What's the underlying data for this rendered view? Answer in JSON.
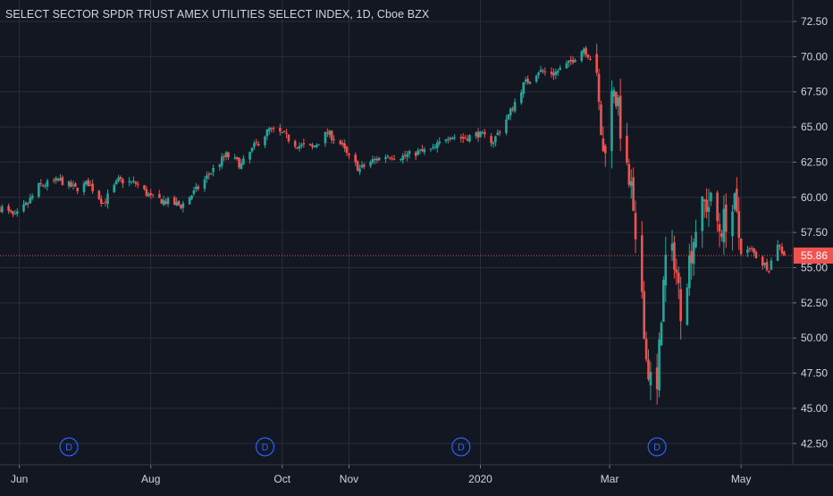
{
  "colors": {
    "background": "#131722",
    "grid": "#2a2e39",
    "text": "#d1d4dc",
    "up": "#26a69a",
    "down": "#ef5350",
    "dividend": "#2962ff",
    "last_price": "#ef5350"
  },
  "chart_data": {
    "type": "candlestick",
    "title": "SELECT SECTOR SPDR TRUST AMEX UTILITIES SELECT INDEX, 1D, Cboe BZX",
    "y_axis": {
      "position": "right",
      "ylim": [
        41.5,
        73.2
      ],
      "ticks": [
        "72.50",
        "70.00",
        "67.50",
        "65.00",
        "62.50",
        "60.00",
        "57.50",
        "55.00",
        "52.50",
        "50.00",
        "47.50",
        "45.00",
        "42.50"
      ]
    },
    "x_axis": {
      "range": [
        "2019-05-23",
        "2020-05-25"
      ],
      "ticks": [
        {
          "date": "2019-06-01",
          "label": "Jun"
        },
        {
          "date": "2019-08-01",
          "label": "Aug"
        },
        {
          "date": "2019-10-01",
          "label": "Oct"
        },
        {
          "date": "2019-11-01",
          "label": "Nov"
        },
        {
          "date": "2020-01-01",
          "label": "2020"
        },
        {
          "date": "2020-03-01",
          "label": "Mar"
        },
        {
          "date": "2020-05-01",
          "label": "May"
        }
      ]
    },
    "grid": true,
    "last_price": 55.86,
    "last_price_label": "55.86",
    "dividend_markers": [
      {
        "date": "2019-06-24",
        "label": "D"
      },
      {
        "date": "2019-09-23",
        "label": "D"
      },
      {
        "date": "2019-12-23",
        "label": "D"
      },
      {
        "date": "2020-03-23",
        "label": "D"
      }
    ],
    "anchors": [
      [
        "2019-05-23",
        59.3
      ],
      [
        "2019-05-30",
        58.6
      ],
      [
        "2019-06-05",
        59.6
      ],
      [
        "2019-06-10",
        60.8
      ],
      [
        "2019-06-20",
        61.2
      ],
      [
        "2019-06-27",
        60.6
      ],
      [
        "2019-07-03",
        61.0
      ],
      [
        "2019-07-10",
        59.6
      ],
      [
        "2019-07-17",
        61.2
      ],
      [
        "2019-07-25",
        61.0
      ],
      [
        "2019-08-01",
        60.0
      ],
      [
        "2019-08-08",
        59.7
      ],
      [
        "2019-08-15",
        59.4
      ],
      [
        "2019-08-22",
        60.5
      ],
      [
        "2019-08-29",
        61.8
      ],
      [
        "2019-09-05",
        63.0
      ],
      [
        "2019-09-12",
        62.3
      ],
      [
        "2019-09-18",
        63.6
      ],
      [
        "2019-09-25",
        64.8
      ],
      [
        "2019-10-01",
        64.5
      ],
      [
        "2019-10-08",
        63.7
      ],
      [
        "2019-10-15",
        63.5
      ],
      [
        "2019-10-22",
        64.6
      ],
      [
        "2019-10-28",
        63.8
      ],
      [
        "2019-11-01",
        62.8
      ],
      [
        "2019-11-06",
        62.0
      ],
      [
        "2019-11-12",
        62.6
      ],
      [
        "2019-11-19",
        63.0
      ],
      [
        "2019-11-26",
        62.9
      ],
      [
        "2019-12-03",
        63.2
      ],
      [
        "2019-12-10",
        63.4
      ],
      [
        "2019-12-17",
        64.4
      ],
      [
        "2019-12-24",
        64.2
      ],
      [
        "2019-12-31",
        64.5
      ],
      [
        "2020-01-07",
        64.0
      ],
      [
        "2020-01-14",
        65.8
      ],
      [
        "2020-01-21",
        68.0
      ],
      [
        "2020-01-28",
        69.0
      ],
      [
        "2020-02-04",
        68.8
      ],
      [
        "2020-02-11",
        69.5
      ],
      [
        "2020-02-18",
        70.6
      ],
      [
        "2020-02-21",
        69.9
      ],
      [
        "2020-02-24",
        68.0
      ],
      [
        "2020-02-27",
        63.0
      ],
      [
        "2020-03-03",
        68.2
      ],
      [
        "2020-03-06",
        65.0
      ],
      [
        "2020-03-09",
        61.5
      ],
      [
        "2020-03-11",
        60.5
      ],
      [
        "2020-03-13",
        56.0
      ],
      [
        "2020-03-16",
        53.5
      ],
      [
        "2020-03-18",
        48.5
      ],
      [
        "2020-03-20",
        47.0
      ],
      [
        "2020-03-23",
        46.0
      ],
      [
        "2020-03-25",
        52.0
      ],
      [
        "2020-03-27",
        55.5
      ],
      [
        "2020-03-31",
        55.8
      ],
      [
        "2020-04-03",
        52.2
      ],
      [
        "2020-04-07",
        55.5
      ],
      [
        "2020-04-10",
        58.0
      ],
      [
        "2020-04-14",
        59.5
      ],
      [
        "2020-04-17",
        59.5
      ],
      [
        "2020-04-21",
        57.8
      ],
      [
        "2020-04-24",
        58.5
      ],
      [
        "2020-04-28",
        59.3
      ],
      [
        "2020-05-01",
        56.2
      ],
      [
        "2020-05-06",
        56.2
      ],
      [
        "2020-05-11",
        55.3
      ],
      [
        "2020-05-14",
        55.0
      ],
      [
        "2020-05-18",
        56.8
      ],
      [
        "2020-05-21",
        55.86
      ]
    ]
  }
}
